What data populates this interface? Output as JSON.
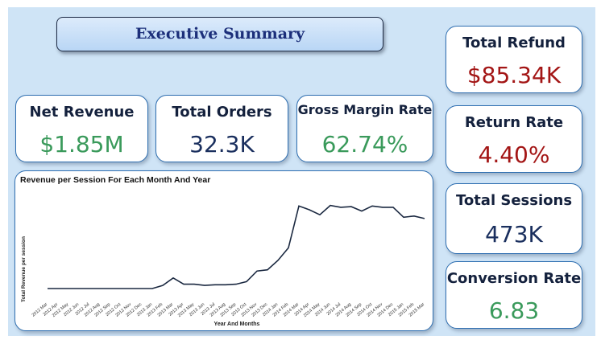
{
  "title": "Executive Summary",
  "colors": {
    "green": "#3a9a5b",
    "navy": "#1a2f5e",
    "red": "#a31515",
    "line": "#1a2840"
  },
  "kpis": {
    "net_revenue": {
      "label": "Net Revenue",
      "value": "$1.85M"
    },
    "total_orders": {
      "label": "Total Orders",
      "value": "32.3K"
    },
    "gross_margin": {
      "label": "Gross Margin Rate",
      "value": "62.74%"
    },
    "total_refund": {
      "label": "Total Refund",
      "value": "$85.34K"
    },
    "return_rate": {
      "label": "Return Rate",
      "value": "4.40%"
    },
    "total_sessions": {
      "label": "Total Sessions",
      "value": "473K"
    },
    "conversion_rate": {
      "label": "Conversion Rate",
      "value": "6.83"
    }
  },
  "chart_data": {
    "type": "line",
    "title": "Revenue per Session For Each Month And Year",
    "xlabel": "Year And Months",
    "ylabel": "Total Revenue per session",
    "categories": [
      "2012 Mar",
      "2012 Apr",
      "2012 May",
      "2012 Jun",
      "2012 Jul",
      "2012 Aug",
      "2012 Sep",
      "2012 Oct",
      "2012 Nov",
      "2012 Dec",
      "2013 Jan",
      "2013 Feb",
      "2013 Mar",
      "2013 Apr",
      "2013 May",
      "2013 Jun",
      "2013 Jul",
      "2013 Aug",
      "2013 Sep",
      "2013 Oct",
      "2013 Nov",
      "2013 Dec",
      "2014 Jan",
      "2014 Feb",
      "2014 Mar",
      "2014 Apr",
      "2014 May",
      "2014 Jun",
      "2014 Jul",
      "2014 Aug",
      "2014 Sep",
      "2014 Oct",
      "2014 Nov",
      "2014 Dec",
      "2015 Jan",
      "2015 Feb",
      "2015 Mar"
    ],
    "values": [
      1.8,
      1.8,
      1.8,
      1.8,
      1.8,
      1.8,
      1.8,
      1.8,
      1.8,
      1.8,
      1.8,
      2.3,
      3.5,
      2.5,
      2.5,
      2.3,
      2.4,
      2.4,
      2.5,
      2.9,
      4.6,
      4.8,
      6.3,
      8.3,
      15.0,
      14.4,
      13.6,
      15.1,
      14.8,
      14.9,
      14.2,
      15.0,
      14.8,
      14.8,
      13.2,
      13.4,
      13.0
    ],
    "ylim": [
      0,
      18
    ],
    "grid": false,
    "legend": "none"
  }
}
